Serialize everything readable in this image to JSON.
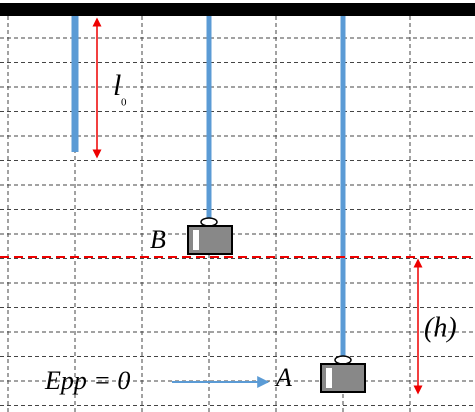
{
  "labels": {
    "length": "l",
    "length_sub": "0",
    "mass_b": "B",
    "mass_a": "A",
    "energy_ref": "Epp = 0",
    "height": "(h)"
  }
}
